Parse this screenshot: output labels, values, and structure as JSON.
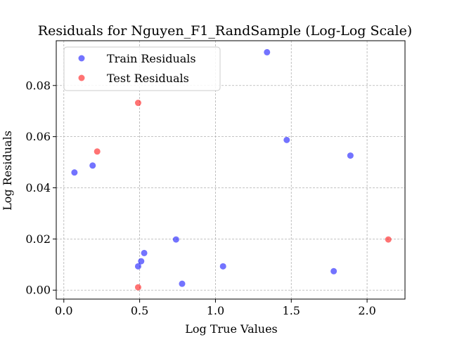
{
  "chart_data": {
    "type": "scatter",
    "title": "Residuals for Nguyen_F1_RandSample (Log-Log Scale)",
    "xlabel": "Log True Values",
    "ylabel": "Log Residuals",
    "xlim": [
      -0.05,
      2.25
    ],
    "ylim": [
      -0.0035,
      0.0975
    ],
    "xticks": [
      0.0,
      0.5,
      1.0,
      1.5,
      2.0
    ],
    "xtick_labels": [
      "0.0",
      "0.5",
      "1.0",
      "1.5",
      "2.0"
    ],
    "yticks": [
      0.0,
      0.02,
      0.04,
      0.06,
      0.08
    ],
    "ytick_labels": [
      "0.00",
      "0.02",
      "0.04",
      "0.06",
      "0.08"
    ],
    "grid": true,
    "legend": {
      "position": "upper-left"
    },
    "series": [
      {
        "name": "Train Residuals",
        "color": "#0000ff",
        "points": [
          [
            0.07,
            0.046
          ],
          [
            0.19,
            0.0487
          ],
          [
            0.49,
            0.0093
          ],
          [
            0.51,
            0.0113
          ],
          [
            0.53,
            0.0145
          ],
          [
            0.74,
            0.0198
          ],
          [
            0.78,
            0.0025
          ],
          [
            1.05,
            0.0093
          ],
          [
            1.34,
            0.093
          ],
          [
            1.47,
            0.0587
          ],
          [
            1.78,
            0.0074
          ],
          [
            1.89,
            0.0526
          ]
        ]
      },
      {
        "name": "Test Residuals",
        "color": "#ff0000",
        "points": [
          [
            0.22,
            0.0542
          ],
          [
            0.49,
            0.0732
          ],
          [
            0.49,
            0.0011
          ],
          [
            2.14,
            0.0198
          ]
        ]
      }
    ]
  }
}
